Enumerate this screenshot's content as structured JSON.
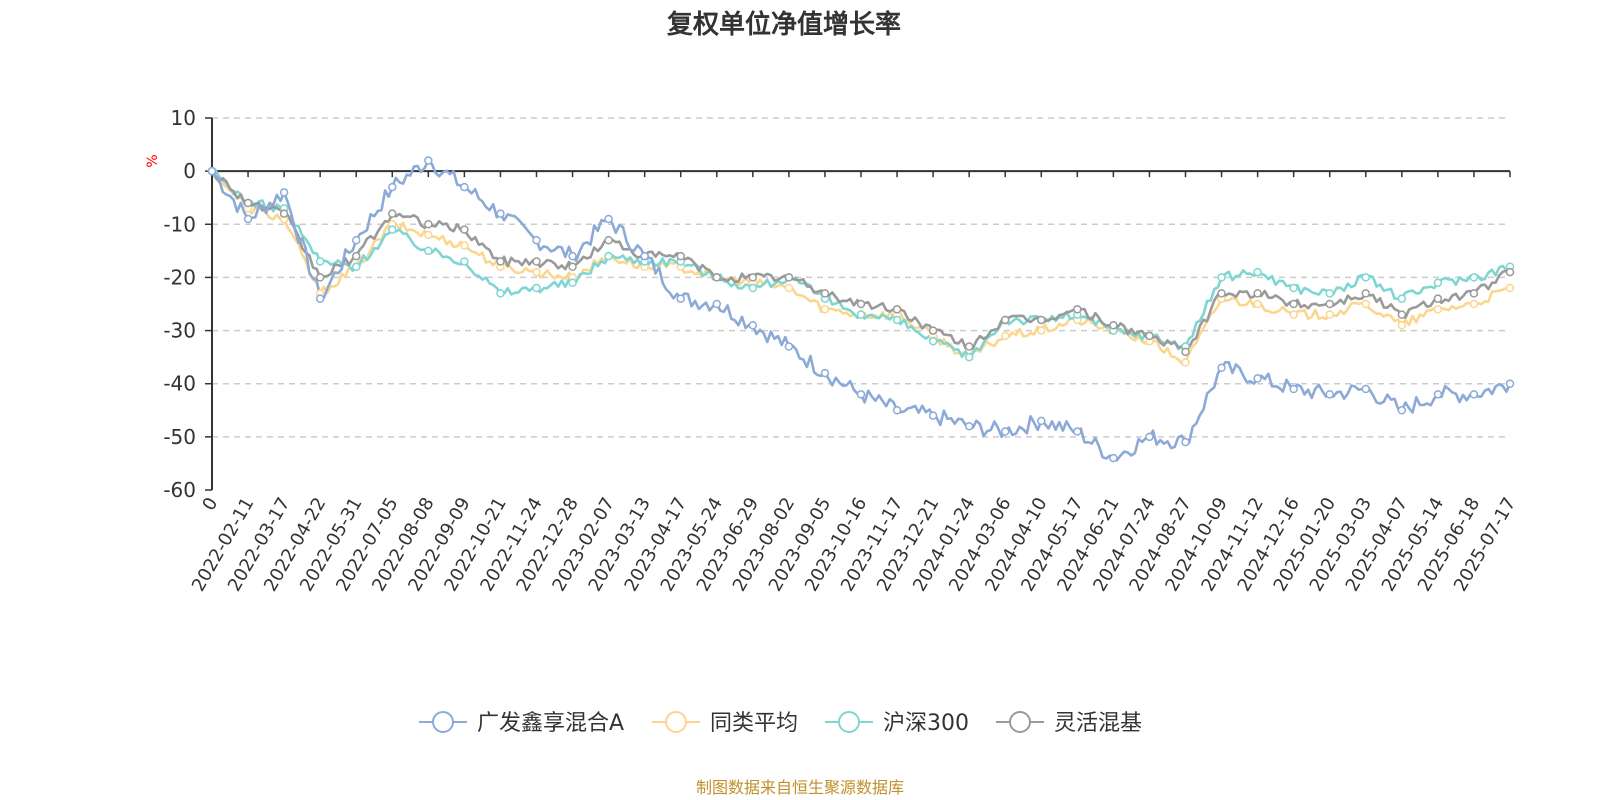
{
  "chart_data": {
    "type": "line",
    "title": "复权单位净值增长率",
    "ylabel": "%",
    "ylim": [
      -60,
      10
    ],
    "yticks": [
      10,
      0,
      -10,
      -20,
      -30,
      -40,
      -50,
      -60
    ],
    "grid": true,
    "legend_position": "bottom",
    "x": [
      "0",
      "2022-02-11",
      "2022-03-17",
      "2022-04-22",
      "2022-05-31",
      "2022-07-05",
      "2022-08-08",
      "2022-09-09",
      "2022-10-21",
      "2022-11-24",
      "2022-12-28",
      "2023-02-07",
      "2023-03-13",
      "2023-04-17",
      "2023-05-24",
      "2023-06-29",
      "2023-08-02",
      "2023-09-05",
      "2023-10-16",
      "2023-11-17",
      "2023-12-21",
      "2024-01-24",
      "2024-03-06",
      "2024-04-10",
      "2024-05-17",
      "2024-06-21",
      "2024-07-24",
      "2024-08-27",
      "2024-10-09",
      "2024-11-12",
      "2024-12-16",
      "2025-01-20",
      "2025-03-03",
      "2025-04-07",
      "2025-05-14",
      "2025-06-18",
      "2025-07-17"
    ],
    "series": [
      {
        "name": "广发鑫享混合A",
        "color": "#8caad8",
        "values": [
          0,
          -9,
          -4,
          -24,
          -13,
          -3,
          2,
          -3,
          -8,
          -13,
          -16,
          -9,
          -16,
          -24,
          -25,
          -29,
          -33,
          -38,
          -42,
          -45,
          -46,
          -48,
          -49,
          -47,
          -49,
          -54,
          -50,
          -51,
          -37,
          -39,
          -41,
          -42,
          -41,
          -45,
          -42,
          -42,
          -40
        ]
      },
      {
        "name": "同类平均",
        "color": "#fcd68f",
        "values": [
          0,
          -7,
          -9,
          -23,
          -18,
          -10,
          -12,
          -14,
          -18,
          -19,
          -20,
          -16,
          -18,
          -18,
          -20,
          -21,
          -22,
          -26,
          -27,
          -27,
          -31,
          -35,
          -31,
          -30,
          -28,
          -30,
          -32,
          -36,
          -24,
          -25,
          -27,
          -27,
          -25,
          -29,
          -26,
          -25,
          -22
        ]
      },
      {
        "name": "沪深300",
        "color": "#7ed6d3",
        "values": [
          0,
          -6,
          -7,
          -17,
          -18,
          -11,
          -15,
          -17,
          -23,
          -22,
          -21,
          -16,
          -17,
          -17,
          -20,
          -22,
          -20,
          -24,
          -27,
          -28,
          -32,
          -35,
          -28,
          -28,
          -27,
          -30,
          -31,
          -33,
          -20,
          -19,
          -22,
          -23,
          -20,
          -24,
          -21,
          -20,
          -18
        ]
      },
      {
        "name": "灵活混基",
        "color": "#9a9a9a",
        "values": [
          0,
          -6,
          -8,
          -20,
          -16,
          -8,
          -10,
          -11,
          -17,
          -17,
          -18,
          -13,
          -16,
          -16,
          -20,
          -20,
          -20,
          -23,
          -25,
          -26,
          -30,
          -33,
          -28,
          -28,
          -26,
          -29,
          -31,
          -34,
          -23,
          -23,
          -25,
          -25,
          -23,
          -27,
          -24,
          -23,
          -19
        ]
      }
    ]
  },
  "source_note": "制图数据来自恒生聚源数据库"
}
